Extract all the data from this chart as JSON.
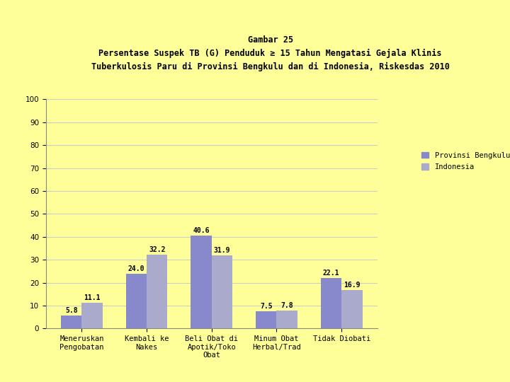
{
  "title_line1": "Gambar 25",
  "title_line2": "Persentase Suspek TB (G) Penduduk ≥ 15 Tahun Mengatasi Gejala Klinis",
  "title_line3": "Tuberkulosis Paru di Provinsi Bengkulu dan di Indonesia, Riskesdas 2010",
  "categories": [
    "Meneruskan\nPengobatan",
    "Kembali ke\nNakes",
    "Beli Obat di\nApotik/Toko\nObat",
    "Minum Obat\nHerbal/Trad",
    "Tidak Diobati"
  ],
  "bengkulu": [
    5.8,
    24.0,
    40.6,
    7.5,
    22.1
  ],
  "indonesia": [
    11.1,
    32.2,
    31.9,
    7.8,
    16.9
  ],
  "bar_color_bengkulu": "#8888cc",
  "bar_color_indonesia": "#aaaacc",
  "ylim": [
    0,
    100
  ],
  "yticks": [
    0,
    10,
    20,
    30,
    40,
    50,
    60,
    70,
    80,
    90,
    100
  ],
  "legend_bengkulu": "Provinsi Bengkulu",
  "legend_indonesia": "Indonesia",
  "background_color": "#ffff99",
  "title_bg_color": "#f0b090",
  "grid_color": "#cccccc",
  "title_fontsize": 8.5,
  "bar_label_fontsize": 7.0,
  "tick_fontsize": 7.5,
  "legend_fontsize": 7.5
}
